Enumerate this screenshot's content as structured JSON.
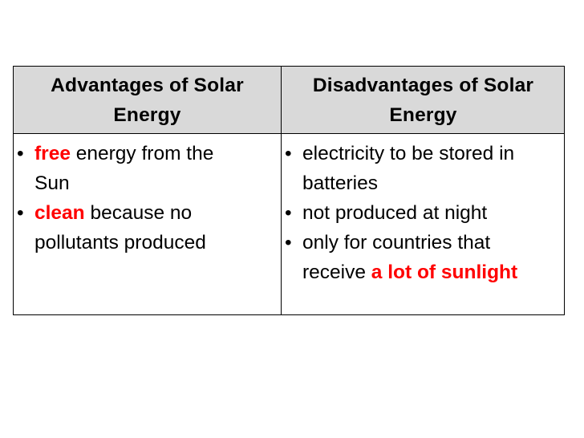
{
  "table": {
    "headers": {
      "left": [
        "Advantages of Solar",
        "Energy"
      ],
      "right": [
        "Disadvantages of Solar",
        "Energy"
      ]
    },
    "bullet": "•",
    "advantages": [
      {
        "highlight": "free",
        "line1_rest": " energy from the",
        "line2": "Sun"
      },
      {
        "highlight": "clean",
        "line1_rest": " because no",
        "line2": "pollutants produced"
      }
    ],
    "disadvantages": [
      {
        "line1": "electricity to be stored in",
        "line2": "batteries"
      },
      {
        "line1": "not produced at night"
      },
      {
        "line1": "only for countries that",
        "line2_prefix": "receive ",
        "line2_highlight": "a lot of sunlight"
      }
    ],
    "highlight_color": "#ff0000",
    "header_background": "#d9d9d9"
  }
}
